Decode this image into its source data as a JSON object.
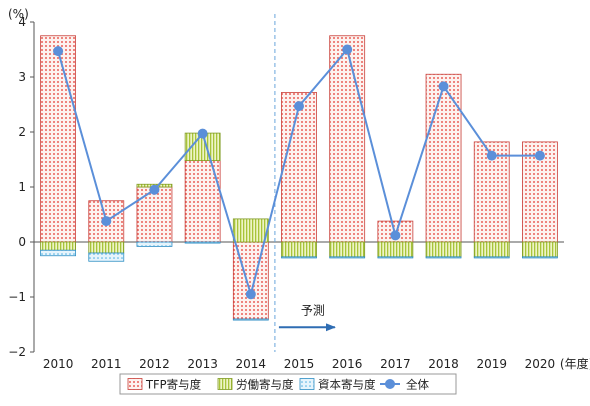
{
  "chart_data": {
    "type": "bar",
    "stacked": true,
    "categories": [
      "2010",
      "2011",
      "2012",
      "2013",
      "2014",
      "2015",
      "2016",
      "2017",
      "2018",
      "2019",
      "2020"
    ],
    "y_unit_label": "(%)",
    "x_unit_label": "(年度)",
    "ylim": [
      -2,
      4
    ],
    "yticks": [
      4,
      3,
      2,
      1,
      0,
      -1,
      -2
    ],
    "ytick_labels": [
      "4",
      "3",
      "2",
      "1",
      "0",
      "−1",
      "−2"
    ],
    "series": [
      {
        "name": "TFP寄与度",
        "kind": "bar",
        "color": "#e8574f",
        "values": [
          3.75,
          0.75,
          1.0,
          1.48,
          -1.4,
          2.72,
          3.75,
          0.38,
          3.05,
          1.82,
          1.82
        ]
      },
      {
        "name": "労働寄与度",
        "kind": "bar",
        "color": "#b2cc3e",
        "values": [
          -0.15,
          -0.2,
          0.05,
          0.5,
          0.42,
          -0.27,
          -0.27,
          -0.27,
          -0.27,
          -0.27,
          -0.27
        ]
      },
      {
        "name": "資本寄与度",
        "kind": "bar",
        "color": "#4aaee0",
        "values": [
          -0.1,
          -0.15,
          -0.08,
          -0.02,
          -0.02,
          -0.02,
          -0.02,
          -0.02,
          -0.02,
          -0.02,
          -0.02
        ]
      },
      {
        "name": "全体",
        "kind": "line",
        "color": "#5b8fd9",
        "values": [
          3.47,
          0.38,
          0.95,
          1.97,
          -0.95,
          2.47,
          3.5,
          0.12,
          2.83,
          1.57,
          1.57
        ]
      }
    ],
    "forecast": {
      "label": "予測",
      "divider_between": [
        "2014",
        "2015"
      ]
    },
    "legend": {
      "placement": "bottom",
      "items": [
        "TFP寄与度",
        "労働寄与度",
        "資本寄与度",
        "全体"
      ]
    },
    "grid": false
  }
}
